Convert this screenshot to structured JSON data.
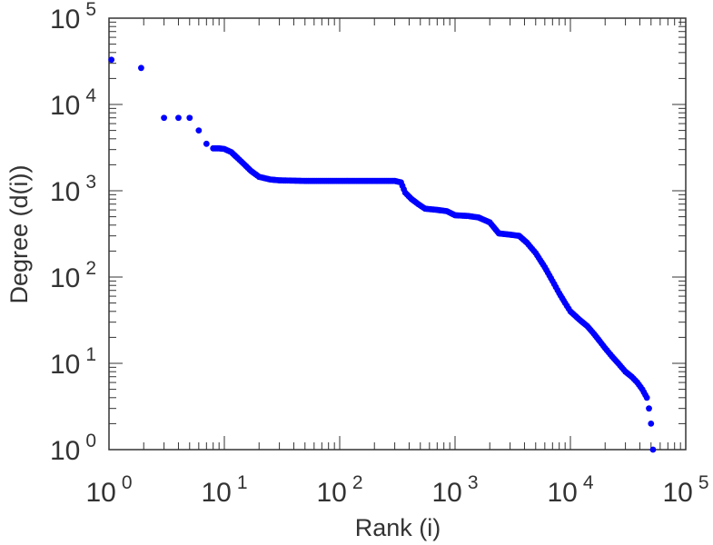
{
  "chart_data": {
    "type": "scatter",
    "xlabel": "Rank (i)",
    "ylabel": "Degree (d(i))",
    "xscale": "log",
    "yscale": "log",
    "xlim": [
      1,
      100000
    ],
    "ylim": [
      1,
      100000
    ],
    "grid": false,
    "marker_color": "#0000ff",
    "x_ticks": [
      {
        "base": "10",
        "exp": "0"
      },
      {
        "base": "10",
        "exp": "1"
      },
      {
        "base": "10",
        "exp": "2"
      },
      {
        "base": "10",
        "exp": "3"
      },
      {
        "base": "10",
        "exp": "4"
      },
      {
        "base": "10",
        "exp": "5"
      }
    ],
    "y_ticks": [
      {
        "base": "10",
        "exp": "0"
      },
      {
        "base": "10",
        "exp": "1"
      },
      {
        "base": "10",
        "exp": "2"
      },
      {
        "base": "10",
        "exp": "3"
      },
      {
        "base": "10",
        "exp": "4"
      },
      {
        "base": "10",
        "exp": "5"
      }
    ],
    "points": [
      [
        1.05,
        33000
      ],
      [
        1.9,
        26500
      ],
      [
        3.0,
        7000
      ],
      [
        4.0,
        7000
      ],
      [
        5.0,
        7000
      ],
      [
        6.0,
        5000
      ],
      [
        7.0,
        3500
      ],
      [
        8.0,
        3100
      ],
      [
        9.0,
        3100
      ],
      [
        10.0,
        3050
      ],
      [
        11.5,
        2800
      ],
      [
        13,
        2400
      ],
      [
        15,
        2000
      ],
      [
        17,
        1700
      ],
      [
        20,
        1450
      ],
      [
        25,
        1350
      ],
      [
        30,
        1320
      ],
      [
        50,
        1300
      ],
      [
        100,
        1300
      ],
      [
        200,
        1300
      ],
      [
        300,
        1300
      ],
      [
        340,
        1250
      ],
      [
        370,
        950
      ],
      [
        420,
        800
      ],
      [
        480,
        700
      ],
      [
        550,
        620
      ],
      [
        700,
        600
      ],
      [
        850,
        580
      ],
      [
        1000,
        520
      ],
      [
        1300,
        510
      ],
      [
        1600,
        490
      ],
      [
        2000,
        430
      ],
      [
        2400,
        320
      ],
      [
        3000,
        310
      ],
      [
        3600,
        300
      ],
      [
        4200,
        250
      ],
      [
        5000,
        190
      ],
      [
        6000,
        130
      ],
      [
        7000,
        90
      ],
      [
        8000,
        65
      ],
      [
        9000,
        50
      ],
      [
        10000,
        40
      ],
      [
        12000,
        32
      ],
      [
        14000,
        27
      ],
      [
        16000,
        22
      ],
      [
        18000,
        18
      ],
      [
        20000,
        15
      ],
      [
        23000,
        12
      ],
      [
        26000,
        10
      ],
      [
        30000,
        8
      ],
      [
        34000,
        7
      ],
      [
        38000,
        6
      ],
      [
        42000,
        5
      ],
      [
        46000,
        4
      ],
      [
        48000,
        3
      ],
      [
        50000,
        2
      ],
      [
        52000,
        1
      ]
    ]
  }
}
